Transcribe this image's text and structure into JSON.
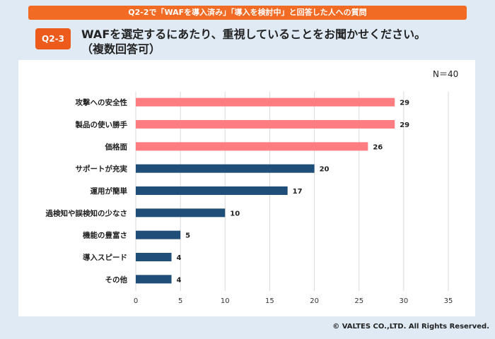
{
  "header": {
    "banner": "Q2-2で「WAFを導入済み」「導入を検討中」と回答した人への質問",
    "badge": "Q2-3",
    "question_line1": "WAFを選定するにあたり、重視していることをお聞かせください。",
    "question_line2": "（複数回答可）"
  },
  "footer": {
    "copyright": "© VALTES CO.,LTD. All Rights Reserved."
  },
  "chart_data": {
    "type": "bar",
    "orientation": "horizontal",
    "note": "N＝40",
    "categories": [
      "攻撃への安全性",
      "製品の使い勝手",
      "価格面",
      "サポートが充実",
      "運用が簡単",
      "過検知や誤検知の少なさ",
      "機能の豊富さ",
      "導入スピード",
      "その他"
    ],
    "values": [
      29,
      29,
      26,
      20,
      17,
      10,
      5,
      4,
      4
    ],
    "bar_colors": [
      "#ff7c80",
      "#ff7c80",
      "#ff7c80",
      "#1f4e79",
      "#1f4e79",
      "#1f4e79",
      "#1f4e79",
      "#1f4e79",
      "#1f4e79"
    ],
    "xlim": [
      0,
      35
    ],
    "xticks": [
      "0",
      "5",
      "10",
      "15",
      "20",
      "25",
      "30",
      "35"
    ],
    "grid": true
  }
}
